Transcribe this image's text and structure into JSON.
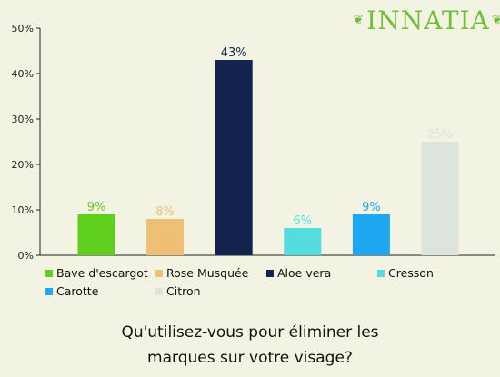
{
  "brand": {
    "logo_text": "INNATIA",
    "color": "#6fbf38"
  },
  "question": {
    "line1": "Qu'utilisez-vous pour éliminer les",
    "line2": "marques sur votre visage?"
  },
  "chart_data": {
    "type": "bar",
    "categories": [
      "Bave d'escargot",
      "Rose Musquée",
      "Aloe vera",
      "Cresson",
      "Carotte",
      "Citron"
    ],
    "values": [
      9,
      8,
      43,
      6,
      9,
      25
    ],
    "value_labels": [
      "9%",
      "8%",
      "43%",
      "6%",
      "9%",
      "25%"
    ],
    "colors": [
      "#5fcf1d",
      "#efbf75",
      "#13234e",
      "#55dcdf",
      "#1fa8f2",
      "#dde4dd"
    ],
    "label_colors": [
      "#5fcf1d",
      "#efbf75",
      "#13234e",
      "#55dcdf",
      "#1fa8f2",
      "#dde4dd"
    ],
    "yticks": [
      "0%",
      "10%",
      "20%",
      "30%",
      "40%",
      "50%"
    ],
    "ylim": [
      0,
      50
    ],
    "grid": false,
    "legend_position": "bottom"
  }
}
